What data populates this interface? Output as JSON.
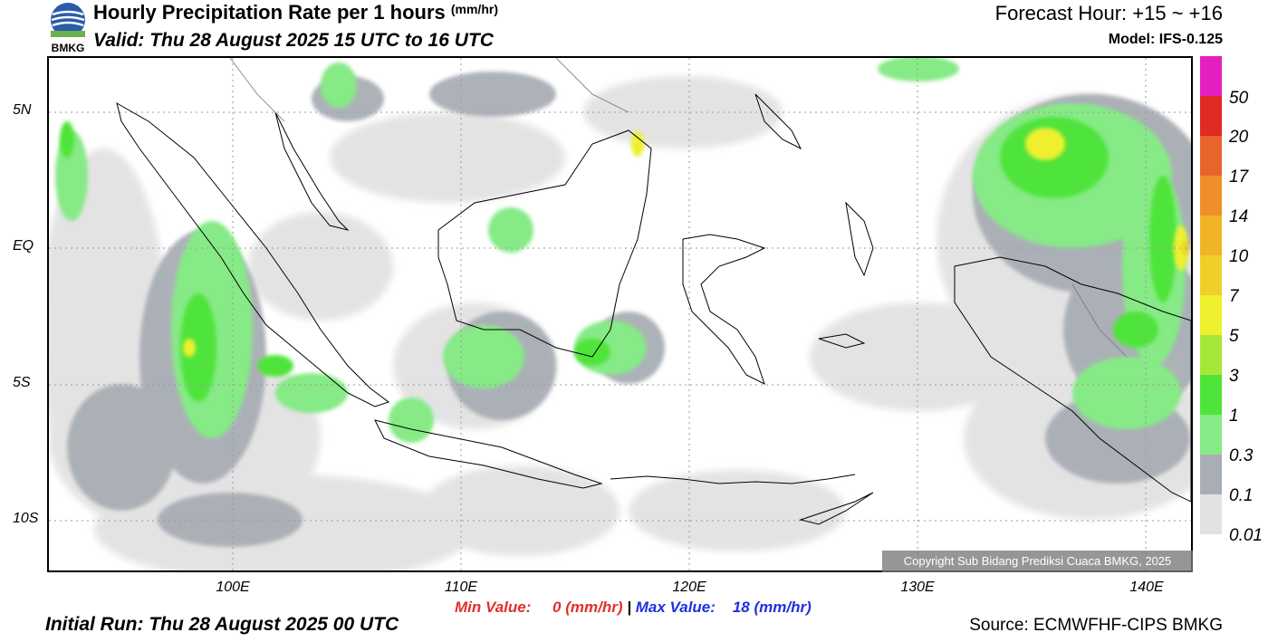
{
  "header": {
    "logo_text": "BMKG",
    "title": "Hourly Precipitation Rate per 1 hours",
    "title_unit": "(mm/hr)",
    "valid": "Valid: Thu 28 August 2025 15 UTC to 16 UTC",
    "forecast_hour": "Forecast Hour: +15 ~ +16",
    "model": "Model: IFS-0.125"
  },
  "map": {
    "lat_labels": [
      "5N",
      "EQ",
      "5S",
      "10S"
    ],
    "lon_labels": [
      "100E",
      "110E",
      "120E",
      "130E",
      "140E"
    ],
    "copyright": "Copyright Sub Bidang Prediksi Cuaca BMKG, 2025",
    "land_color": "#ffffff",
    "border_color": "#000000",
    "gridline_color": "#9a9a9a"
  },
  "colorbar": {
    "labels": [
      "50",
      "20",
      "17",
      "14",
      "10",
      "7",
      "5",
      "3",
      "1",
      "0.3",
      "0.1",
      "0.01"
    ],
    "colors": [
      "#e51fbf",
      "#e02a22",
      "#e8642a",
      "#f08e2a",
      "#f1b328",
      "#efd028",
      "#eef02e",
      "#a6e838",
      "#4fe43a",
      "#86ea86",
      "#a9aeb5",
      "#e2e2e2"
    ]
  },
  "footer": {
    "min_label": "Min Value:",
    "min_value": "0",
    "min_unit": "(mm/hr)",
    "separator": "|",
    "max_label": "Max Value:",
    "max_value": "18",
    "max_unit": "(mm/hr)",
    "initial_run": "Initial Run: Thu 28 August 2025 00 UTC",
    "source": "Source: ECMWFHF-CIPS BMKG"
  }
}
